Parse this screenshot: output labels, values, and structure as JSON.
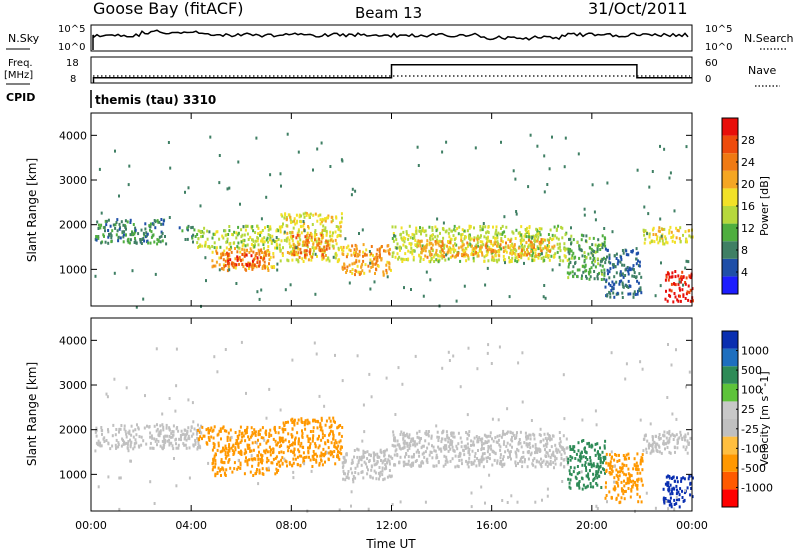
{
  "header": {
    "station": "Goose Bay (fitACF)",
    "beam": "Beam 13",
    "date": "31/Oct/2011"
  },
  "top_panels": {
    "nsky_label": "N.Sky",
    "nsky_ticks": [
      "10^5",
      "10^0"
    ],
    "nsearch_label": "N.Search",
    "nsearch_ticks": [
      "10^5",
      "10^0"
    ],
    "freq_label_1": "Freq.",
    "freq_label_2": "[MHz]",
    "freq_ticks": [
      "18",
      "8"
    ],
    "nave_label": "Nave",
    "nave_ticks": [
      "60",
      "0"
    ],
    "cpid_label": "CPID",
    "cpid_value": "themis (tau) 3310"
  },
  "colors": {
    "power_scale": [
      "#1d1dff",
      "#1f4fa8",
      "#3f7f64",
      "#4fae3f",
      "#b6d83c",
      "#f2e127",
      "#f5a623",
      "#f07a13",
      "#ee4b0c",
      "#e80e0a"
    ],
    "velocity_scale": [
      "#ff0000",
      "#ff5a00",
      "#ff9800",
      "#ffbf40",
      "#c0c0c0",
      "#c8c8c8",
      "#5ec33a",
      "#2e8b57",
      "#1e6fbf",
      "#0a2fb0"
    ],
    "ground_scatter": "#c0c0c0"
  },
  "chart_data": [
    {
      "type": "heatmap",
      "name": "power",
      "xlabel": "",
      "ylabel": "Slant Range [km]",
      "xlim": [
        0,
        24
      ],
      "ylim": [
        180,
        4500
      ],
      "yticks": [
        "1000",
        "2000",
        "3000",
        "4000"
      ],
      "colorbar_label": "Power [dB]",
      "colorbar_ticks": [
        "4",
        "8",
        "12",
        "16",
        "20",
        "24",
        "28"
      ],
      "colorbar_range": [
        0,
        30
      ],
      "bands": [
        {
          "t": [
            0.1,
            3.0
          ],
          "r": [
            1600,
            2150
          ],
          "v": 8
        },
        {
          "t": [
            3.5,
            4.2
          ],
          "r": [
            1700,
            2000
          ],
          "v": 8
        },
        {
          "t": [
            4.2,
            7.5
          ],
          "r": [
            1500,
            2000
          ],
          "v": 14
        },
        {
          "t": [
            4.8,
            7.3
          ],
          "r": [
            1000,
            1500
          ],
          "v": 20
        },
        {
          "t": [
            5.3,
            7.0
          ],
          "r": [
            1100,
            1400
          ],
          "v": 26
        },
        {
          "t": [
            7.5,
            10.0
          ],
          "r": [
            1200,
            2300
          ],
          "v": 16
        },
        {
          "t": [
            8.0,
            9.5
          ],
          "r": [
            1300,
            1800
          ],
          "v": 22
        },
        {
          "t": [
            10.0,
            12.0
          ],
          "r": [
            900,
            1600
          ],
          "v": 20
        },
        {
          "t": [
            12.0,
            19.0
          ],
          "r": [
            1200,
            2000
          ],
          "v": 14
        },
        {
          "t": [
            13.0,
            18.5
          ],
          "r": [
            1300,
            1700
          ],
          "v": 20
        },
        {
          "t": [
            19.0,
            20.5
          ],
          "r": [
            800,
            1800
          ],
          "v": 10
        },
        {
          "t": [
            20.5,
            22.0
          ],
          "r": [
            400,
            1500
          ],
          "v": 6
        },
        {
          "t": [
            22.0,
            24.0
          ],
          "r": [
            1600,
            2000
          ],
          "v": 16
        },
        {
          "t": [
            22.8,
            24.0
          ],
          "r": [
            300,
            1000
          ],
          "v": 28
        }
      ]
    },
    {
      "type": "heatmap",
      "name": "velocity",
      "xlabel": "Time UT",
      "ylabel": "Slant Range [km]",
      "xlim": [
        0,
        24
      ],
      "ylim": [
        180,
        4500
      ],
      "xticks": [
        "00:00",
        "04:00",
        "08:00",
        "12:00",
        "16:00",
        "20:00",
        "00:00"
      ],
      "yticks": [
        "1000",
        "2000",
        "3000",
        "4000"
      ],
      "colorbar_label": "Velocity [m s^-1]",
      "colorbar_ticks": [
        "1000",
        "500",
        "100",
        "25",
        "-25",
        "-100",
        "-500",
        "-1000"
      ],
      "bands": [
        {
          "t": [
            0.1,
            4.5
          ],
          "r": [
            1600,
            2150
          ],
          "v": 0
        },
        {
          "t": [
            4.2,
            7.5
          ],
          "r": [
            1700,
            2100
          ],
          "v": -150
        },
        {
          "t": [
            4.8,
            7.5
          ],
          "r": [
            1000,
            1700
          ],
          "v": -300
        },
        {
          "t": [
            7.5,
            10.0
          ],
          "r": [
            1200,
            2300
          ],
          "v": -250
        },
        {
          "t": [
            10.0,
            12.0
          ],
          "r": [
            900,
            1600
          ],
          "v": 0
        },
        {
          "t": [
            12.0,
            19.0
          ],
          "r": [
            1200,
            2000
          ],
          "v": 0
        },
        {
          "t": [
            19.0,
            20.5
          ],
          "r": [
            700,
            1800
          ],
          "v": 300
        },
        {
          "t": [
            20.5,
            22.0
          ],
          "r": [
            400,
            1500
          ],
          "v": -200
        },
        {
          "t": [
            22.0,
            24.0
          ],
          "r": [
            1500,
            2000
          ],
          "v": 0
        },
        {
          "t": [
            22.8,
            24.0
          ],
          "r": [
            300,
            1000
          ],
          "v": 600
        }
      ]
    },
    {
      "type": "line",
      "name": "frequency",
      "ylim": [
        8,
        18
      ],
      "x": [
        0.1,
        0.1,
        12.0,
        12.0,
        21.8,
        21.8,
        24.0
      ],
      "values": [
        8,
        10,
        10,
        15,
        15,
        10,
        10
      ]
    }
  ]
}
